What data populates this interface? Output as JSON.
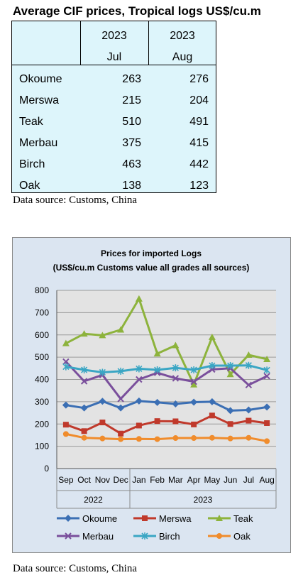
{
  "table": {
    "title": "Average CIF prices, Tropical logs US$/cu.m",
    "columns": [
      {
        "year": "2023",
        "month": "Jul"
      },
      {
        "year": "2023",
        "month": "Aug"
      }
    ],
    "rows": [
      {
        "name": "Okoume",
        "jul": "263",
        "aug": "276"
      },
      {
        "name": "Merswa",
        "jul": "215",
        "aug": "204"
      },
      {
        "name": "Teak",
        "jul": "510",
        "aug": "491"
      },
      {
        "name": "Merbau",
        "jul": "375",
        "aug": "415"
      },
      {
        "name": "Birch",
        "jul": "463",
        "aug": "442"
      },
      {
        "name": "Oak",
        "jul": "138",
        "aug": "123"
      }
    ],
    "source": "Data source: Customs, China"
  },
  "chart_data": {
    "type": "line",
    "title_line1": "Prices for imported Logs",
    "title_line2": "(US$/cu.m Customs value all grades all sources)",
    "categories": [
      "Sep",
      "Oct",
      "Nov",
      "Dec",
      "Jan",
      "Feb",
      "Mar",
      "Apr",
      "May",
      "Jun",
      "Jul",
      "Aug"
    ],
    "year_groups": [
      {
        "label": "2022",
        "start": 0,
        "end": 3
      },
      {
        "label": "2023",
        "start": 4,
        "end": 11
      }
    ],
    "yticks": [
      0,
      100,
      200,
      300,
      400,
      500,
      600,
      700,
      800
    ],
    "ylim": [
      0,
      800
    ],
    "grid": true,
    "legend_position": "bottom",
    "series": [
      {
        "name": "Okoume",
        "color": "#3b6fb4",
        "marker": "diamond",
        "values": [
          285,
          272,
          302,
          272,
          303,
          297,
          290,
          298,
          300,
          260,
          263,
          276
        ]
      },
      {
        "name": "Merswa",
        "color": "#c0392b",
        "marker": "square",
        "values": [
          197,
          168,
          207,
          157,
          193,
          213,
          212,
          198,
          238,
          200,
          215,
          204
        ]
      },
      {
        "name": "Teak",
        "color": "#8db33c",
        "marker": "triangle",
        "values": [
          562,
          605,
          598,
          623,
          762,
          516,
          553,
          377,
          590,
          423,
          510,
          491
        ]
      },
      {
        "name": "Merbau",
        "color": "#7a4f9c",
        "marker": "x",
        "values": [
          480,
          392,
          420,
          313,
          400,
          430,
          405,
          390,
          445,
          450,
          375,
          415
        ]
      },
      {
        "name": "Birch",
        "color": "#3aa6c4",
        "marker": "star",
        "values": [
          457,
          443,
          432,
          437,
          448,
          443,
          452,
          443,
          462,
          462,
          463,
          442
        ]
      },
      {
        "name": "Oak",
        "color": "#f08c2c",
        "marker": "circle",
        "values": [
          155,
          138,
          135,
          132,
          133,
          132,
          137,
          137,
          138,
          135,
          138,
          123
        ]
      }
    ],
    "source": "Data source: Customs, China"
  }
}
